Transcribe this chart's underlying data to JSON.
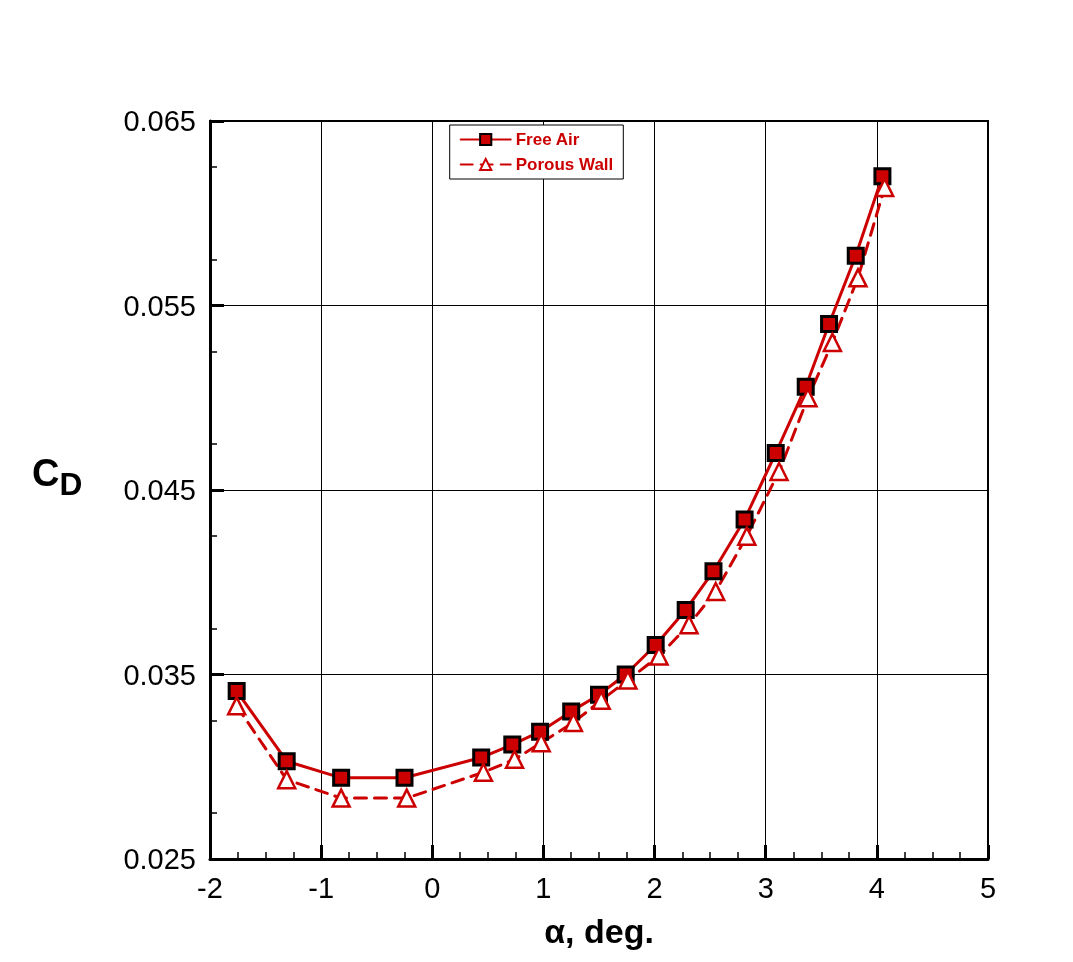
{
  "chart_data": {
    "type": "line",
    "xlabel": "α, deg.",
    "ylabel": "C$_{D}$",
    "xlim": [
      -2,
      5
    ],
    "xticks": [
      -2,
      -1,
      0,
      1,
      2,
      3,
      4,
      5
    ],
    "ylim": [
      0.025,
      0.065
    ],
    "yticks": [
      0.025,
      0.035,
      0.045,
      0.055,
      0.065
    ],
    "grid": true,
    "legend": "top",
    "series": [
      {
        "name": "Free Air",
        "color": "#cc0000",
        "marker": "square",
        "line_style": "solid",
        "x": [
          -1.76,
          -1.31,
          -0.82,
          -0.25,
          0.44,
          0.72,
          0.97,
          1.25,
          1.5,
          1.74,
          2.01,
          2.28,
          2.53,
          2.81,
          3.09,
          3.36,
          3.57,
          3.81,
          4.05
        ],
        "values": [
          0.0341,
          0.0303,
          0.0294,
          0.0294,
          0.0305,
          0.0312,
          0.0319,
          0.033,
          0.0339,
          0.035,
          0.0366,
          0.0385,
          0.0406,
          0.0434,
          0.047,
          0.0506,
          0.054,
          0.0577,
          0.062
        ]
      },
      {
        "name": "Porous Wall",
        "color": "#cc0000",
        "marker": "triangle",
        "line_style": "dashed",
        "x": [
          -1.76,
          -1.31,
          -0.82,
          -0.23,
          0.46,
          0.74,
          0.98,
          1.27,
          1.52,
          1.76,
          2.04,
          2.31,
          2.55,
          2.83,
          3.12,
          3.38,
          3.6,
          3.83,
          4.07
        ],
        "values": [
          0.0333,
          0.0293,
          0.0283,
          0.0283,
          0.0297,
          0.0304,
          0.0313,
          0.0324,
          0.0336,
          0.0347,
          0.036,
          0.0377,
          0.0395,
          0.0425,
          0.046,
          0.05,
          0.053,
          0.0565,
          0.0614
        ]
      }
    ]
  }
}
